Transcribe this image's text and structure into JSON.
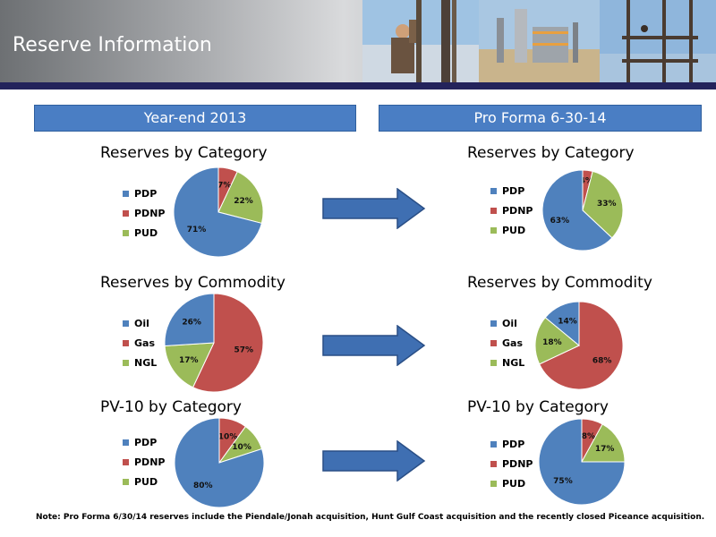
{
  "header": {
    "title": "Reserve Information"
  },
  "columns": [
    {
      "label": "Year-end 2013"
    },
    {
      "label": "Pro Forma 6-30-14"
    }
  ],
  "colors": {
    "blue": "#4f81bd",
    "red": "#c0504d",
    "green": "#9bbb59",
    "banner": "#4a7ec4",
    "arrow": "#3f6fb2"
  },
  "note": "Note: Pro Forma 6/30/14 reserves include the Piendale/Jonah acquisition, Hunt Gulf Coast acquisition and the recently closed Piceance acquisition.",
  "chart_data": [
    {
      "type": "pie",
      "title": "Reserves by Category",
      "column": "Year-end 2013",
      "labels": [
        "PDP",
        "PDNP",
        "PUD"
      ],
      "values": [
        71,
        7,
        22
      ],
      "display": [
        "71%",
        "7%",
        "22%"
      ]
    },
    {
      "type": "pie",
      "title": "Reserves by Commodity",
      "column": "Year-end 2013",
      "labels": [
        "Oil",
        "Gas",
        "NGL"
      ],
      "values": [
        26,
        57,
        17
      ],
      "display": [
        "26%",
        "57%",
        "17%"
      ]
    },
    {
      "type": "pie",
      "title": "PV-10 by Category",
      "column": "Year-end 2013",
      "labels": [
        "PDP",
        "PDNP",
        "PUD"
      ],
      "values": [
        80,
        10,
        10
      ],
      "display": [
        "80%",
        "10%",
        "10%"
      ]
    },
    {
      "type": "pie",
      "title": "Reserves by Category",
      "column": "Pro Forma 6-30-14",
      "labels": [
        "PDP",
        "PDNP",
        "PUD"
      ],
      "values": [
        63,
        4,
        33
      ],
      "display": [
        "63%",
        "4%",
        "33%"
      ]
    },
    {
      "type": "pie",
      "title": "Reserves by Commodity",
      "column": "Pro Forma 6-30-14",
      "labels": [
        "Oil",
        "Gas",
        "NGL"
      ],
      "values": [
        14,
        68,
        18
      ],
      "display": [
        "14%",
        "68%",
        "18%"
      ]
    },
    {
      "type": "pie",
      "title": "PV-10 by Category",
      "column": "Pro Forma 6-30-14",
      "labels": [
        "PDP",
        "PDNP",
        "PUD"
      ],
      "values": [
        75,
        8,
        17
      ],
      "display": [
        "75%",
        "8%",
        "17%"
      ]
    }
  ]
}
